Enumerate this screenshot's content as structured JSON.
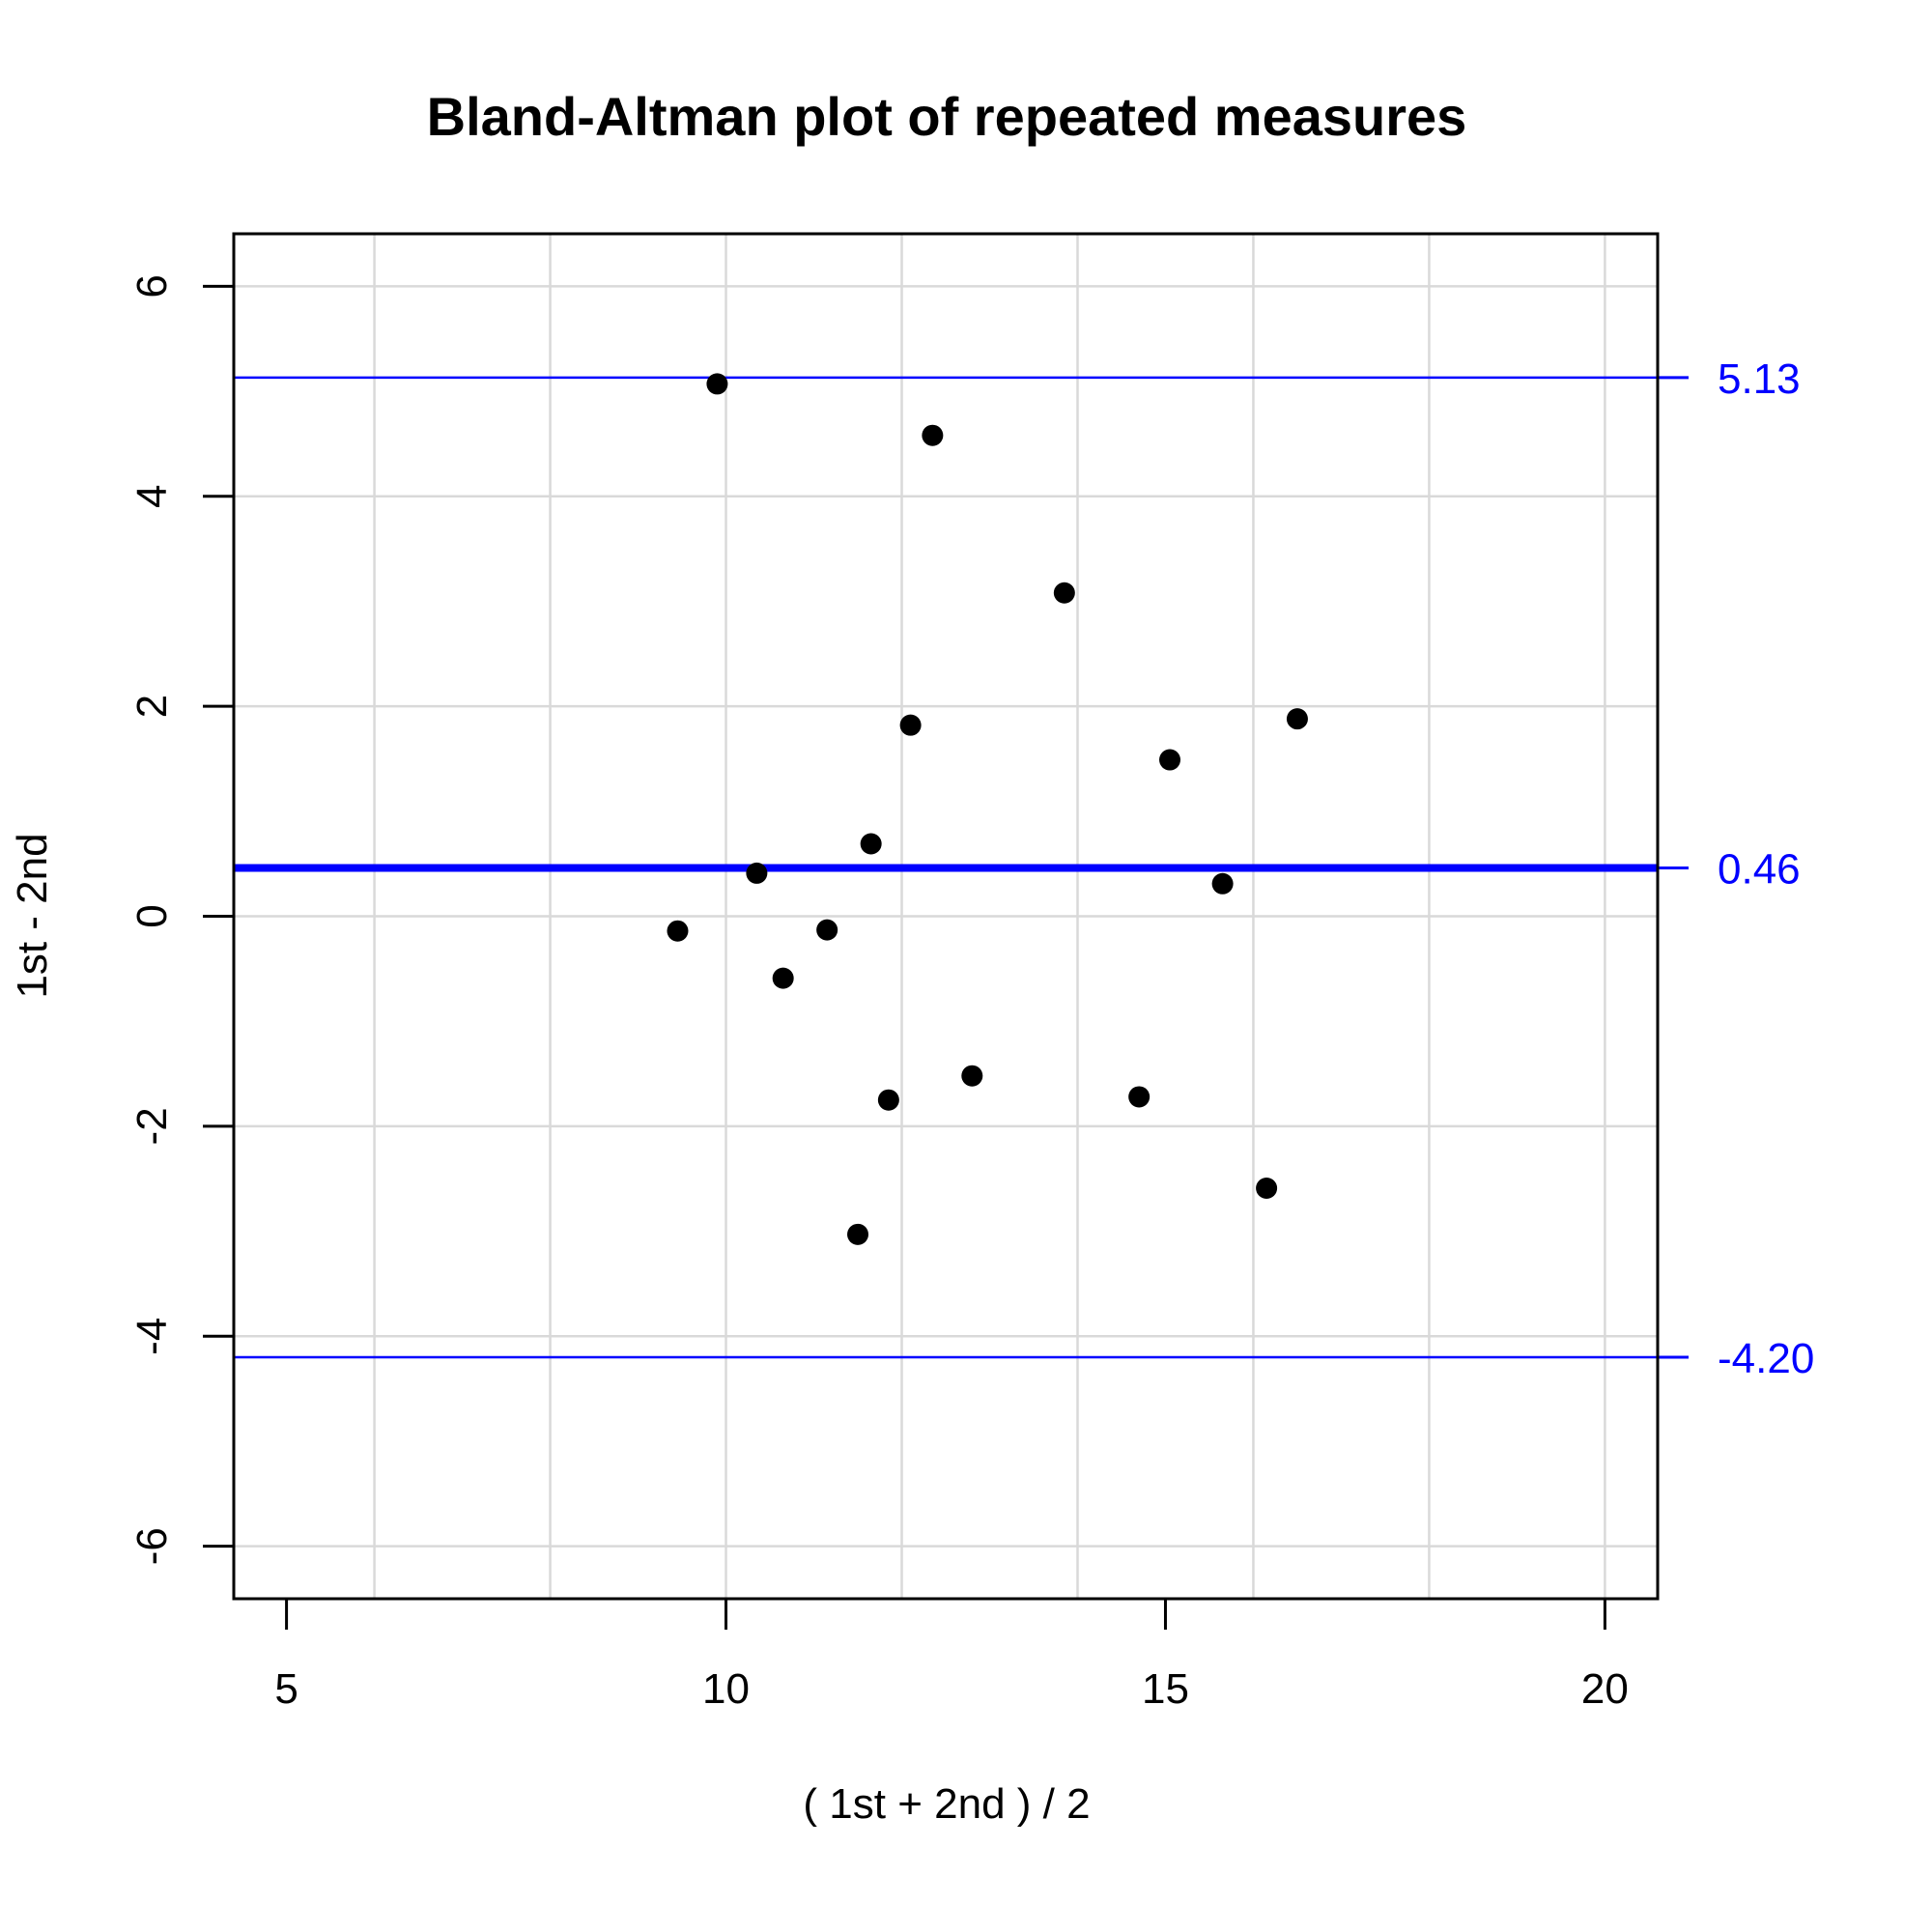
{
  "chart_data": {
    "type": "scatter",
    "title": "Bland-Altman plot of repeated measures",
    "xlabel": "( 1st + 2nd ) / 2",
    "ylabel": "1st - 2nd",
    "xlim": [
      4.4,
      20.6
    ],
    "ylim": [
      -6.5,
      6.5
    ],
    "x_ticks": [
      5,
      10,
      15,
      20
    ],
    "y_ticks": [
      -6,
      -4,
      -2,
      0,
      2,
      4,
      6
    ],
    "x_grid": [
      6,
      8,
      10,
      12,
      14,
      16,
      18,
      20
    ],
    "y_grid": [
      -6,
      -4,
      -2,
      0,
      2,
      4,
      6
    ],
    "grid": true,
    "point_color": "#000000",
    "points": [
      {
        "x": 9.9,
        "y": 5.07
      },
      {
        "x": 12.35,
        "y": 4.58
      },
      {
        "x": 13.85,
        "y": 3.08
      },
      {
        "x": 12.1,
        "y": 1.82
      },
      {
        "x": 16.5,
        "y": 1.88
      },
      {
        "x": 15.05,
        "y": 1.49
      },
      {
        "x": 11.65,
        "y": 0.69
      },
      {
        "x": 10.35,
        "y": 0.41
      },
      {
        "x": 15.65,
        "y": 0.31
      },
      {
        "x": 9.45,
        "y": -0.14
      },
      {
        "x": 11.15,
        "y": -0.13
      },
      {
        "x": 10.65,
        "y": -0.59
      },
      {
        "x": 12.8,
        "y": -1.52
      },
      {
        "x": 11.85,
        "y": -1.75
      },
      {
        "x": 14.7,
        "y": -1.72
      },
      {
        "x": 16.15,
        "y": -2.59
      },
      {
        "x": 11.5,
        "y": -3.03
      }
    ],
    "reference_lines": [
      {
        "y": 5.13,
        "label": "5.13",
        "color": "#0000ff",
        "weight": "thin"
      },
      {
        "y": 0.46,
        "label": "0.46",
        "color": "#0000ff",
        "weight": "thick"
      },
      {
        "y": -4.2,
        "label": "-4.20",
        "color": "#0000ff",
        "weight": "thin"
      }
    ]
  }
}
